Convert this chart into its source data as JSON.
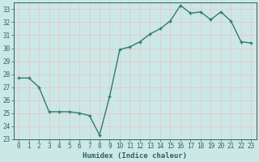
{
  "x": [
    0,
    1,
    2,
    3,
    4,
    5,
    6,
    7,
    8,
    9,
    10,
    11,
    12,
    13,
    14,
    15,
    16,
    17,
    18,
    19,
    20,
    21,
    22,
    23
  ],
  "y": [
    27.7,
    27.7,
    27.0,
    25.1,
    25.1,
    25.1,
    25.0,
    24.8,
    23.3,
    26.3,
    29.9,
    30.1,
    30.5,
    31.1,
    31.5,
    32.1,
    33.3,
    32.7,
    32.8,
    32.2,
    32.8,
    32.1,
    30.5,
    30.4
  ],
  "line_color": "#2e7d6e",
  "marker": "+",
  "marker_size": 3.5,
  "linewidth": 1.0,
  "bg_color": "#cce8e6",
  "grid_color": "#e8c8c8",
  "tick_color": "#2e6060",
  "label_color": "#2e6060",
  "xlabel": "Humidex (Indice chaleur)",
  "ylim": [
    23,
    33.5
  ],
  "xlim": [
    -0.5,
    23.5
  ],
  "yticks": [
    23,
    24,
    25,
    26,
    27,
    28,
    29,
    30,
    31,
    32,
    33
  ],
  "xticks": [
    0,
    1,
    2,
    3,
    4,
    5,
    6,
    7,
    8,
    9,
    10,
    11,
    12,
    13,
    14,
    15,
    16,
    17,
    18,
    19,
    20,
    21,
    22,
    23
  ],
  "xlabel_fontsize": 6.5,
  "tick_fontsize": 5.5
}
